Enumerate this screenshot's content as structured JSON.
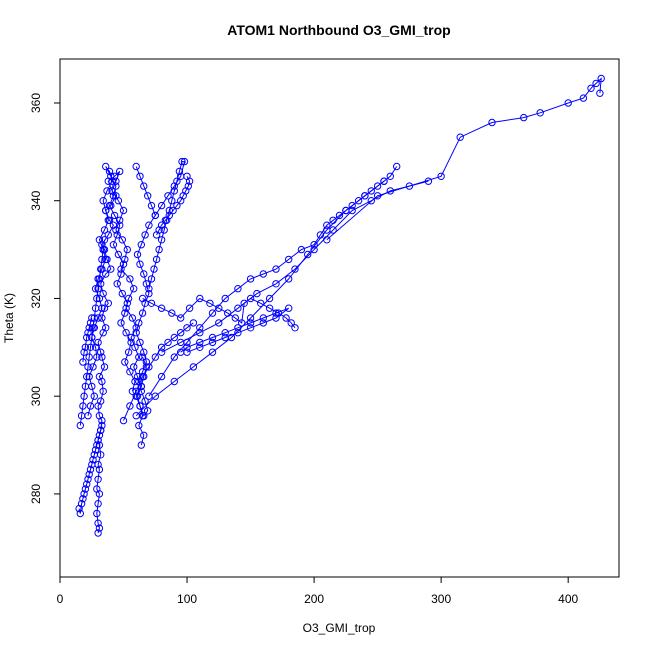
{
  "chart_data": {
    "type": "scatter",
    "title": "ATOM1 Northbound O3_GMI_trop",
    "xlabel": "O3_GMI_trop",
    "ylabel": "Theta (K)",
    "xlim": [
      0,
      440
    ],
    "ylim": [
      263,
      369
    ],
    "xticks": [
      0,
      100,
      200,
      300,
      400
    ],
    "yticks": [
      280,
      300,
      320,
      340,
      360
    ],
    "grid": false,
    "point_style": "open-circle",
    "line_style": "connected",
    "color": "#0000ff",
    "series": [
      {
        "x": [
          30,
          31,
          30,
          29,
          30,
          31,
          29,
          30,
          31,
          30,
          32,
          31,
          30,
          32,
          33,
          31,
          30,
          32,
          34,
          33,
          31,
          35,
          33,
          32,
          30,
          34,
          36,
          33,
          35,
          38,
          34,
          32,
          36,
          40,
          37,
          35,
          33,
          38,
          42,
          39,
          36,
          40,
          44,
          41,
          38,
          43,
          47,
          44,
          41,
          46,
          50,
          47,
          44,
          49,
          53,
          51,
          48,
          55,
          58,
          54,
          52,
          57,
          60,
          56,
          59,
          62,
          58,
          61,
          64,
          60,
          63,
          65,
          62,
          66,
          64
        ],
        "y": [
          272,
          273,
          274,
          276,
          278,
          280,
          281,
          283,
          285,
          286,
          288,
          290,
          291,
          293,
          295,
          296,
          298,
          299,
          301,
          303,
          304,
          306,
          308,
          309,
          311,
          313,
          314,
          316,
          318,
          319,
          321,
          323,
          325,
          326,
          328,
          330,
          331,
          333,
          335,
          336,
          338,
          339,
          341,
          342,
          344,
          345,
          346,
          344,
          342,
          340,
          338,
          336,
          334,
          332,
          330,
          328,
          326,
          324,
          322,
          320,
          318,
          316,
          314,
          312,
          310,
          308,
          306,
          304,
          302,
          300,
          298,
          296,
          294,
          292,
          290
        ]
      },
      {
        "x": [
          22,
          24,
          27,
          25,
          23,
          26,
          29,
          28,
          25,
          27,
          30,
          33,
          31,
          28,
          30,
          33,
          36,
          34,
          31,
          35,
          38,
          36,
          34,
          37,
          41,
          39,
          36,
          40,
          44,
          42,
          39,
          43,
          47,
          45,
          42,
          46,
          50,
          48,
          45,
          49,
          53,
          51,
          48,
          52,
          56,
          54,
          51,
          55,
          59,
          57
        ],
        "y": [
          296,
          298,
          300,
          302,
          304,
          306,
          308,
          310,
          312,
          314,
          316,
          318,
          320,
          322,
          324,
          326,
          328,
          330,
          332,
          334,
          336,
          338,
          340,
          342,
          344,
          346,
          347,
          345,
          343,
          341,
          339,
          337,
          335,
          333,
          331,
          329,
          327,
          325,
          323,
          321,
          319,
          317,
          315,
          313,
          311,
          309,
          307,
          305,
          303,
          301
        ]
      },
      {
        "x": [
          15,
          16,
          17,
          18,
          19,
          20,
          21,
          22,
          23,
          24,
          25,
          26,
          27,
          28,
          29,
          30,
          31,
          32,
          33
        ],
        "y": [
          277,
          276,
          278,
          279,
          280,
          281,
          282,
          283,
          284,
          285,
          286,
          287,
          288,
          289,
          290,
          291,
          292,
          293,
          294
        ]
      },
      {
        "x": [
          16,
          17,
          18,
          19,
          20,
          21,
          22,
          23,
          24,
          25,
          26,
          27,
          28,
          29,
          30,
          31,
          32,
          33,
          34,
          35
        ],
        "y": [
          294,
          296,
          298,
          300,
          302,
          304,
          306,
          308,
          310,
          312,
          314,
          316,
          318,
          320,
          322,
          324,
          326,
          328,
          330,
          332
        ]
      },
      {
        "x": [
          18,
          19,
          20,
          21,
          22,
          23,
          24,
          25
        ],
        "y": [
          307,
          309,
          310,
          312,
          313,
          314,
          315,
          316
        ]
      },
      {
        "x": [
          60,
          63,
          66,
          69,
          72,
          75,
          70,
          67,
          64,
          61,
          63,
          66,
          68,
          70,
          67,
          65,
          62,
          60,
          63,
          66,
          68,
          65,
          62,
          64,
          67,
          69,
          66,
          63,
          61,
          64,
          66,
          68,
          65
        ],
        "y": [
          347,
          345,
          343,
          341,
          339,
          337,
          335,
          333,
          331,
          329,
          327,
          325,
          323,
          321,
          319,
          317,
          315,
          313,
          311,
          309,
          307,
          305,
          303,
          301,
          299,
          297,
          296,
          298,
          300,
          302,
          304,
          306,
          308
        ]
      },
      {
        "x": [
          75,
          80,
          85,
          90,
          95,
          98,
          96,
          94,
          92,
          90,
          88,
          86,
          84,
          82,
          80,
          78,
          76,
          74,
          72,
          70
        ],
        "y": [
          337,
          339,
          341,
          343,
          345,
          348,
          348,
          346,
          344,
          342,
          340,
          338,
          336,
          334,
          332,
          330,
          328,
          326,
          324,
          322
        ]
      },
      {
        "x": [
          100,
          102,
          101,
          99,
          97,
          95,
          92,
          89,
          86,
          83,
          80,
          78,
          76
        ],
        "y": [
          345,
          344,
          343,
          342,
          341,
          340,
          339,
          338,
          337,
          336,
          335,
          334,
          333
        ]
      },
      {
        "x": [
          65,
          72,
          80,
          88,
          95,
          102,
          110,
          118,
          125,
          132,
          138,
          143,
          145,
          150,
          158,
          165,
          172,
          178,
          182,
          185
        ],
        "y": [
          320,
          319,
          318,
          317,
          316,
          318,
          320,
          319,
          318,
          317,
          316,
          315,
          319,
          320,
          319,
          318,
          317,
          316,
          315,
          314
        ]
      },
      {
        "x": [
          70,
          80,
          90,
          100,
          110,
          120,
          130,
          140,
          150,
          160,
          170,
          180,
          190,
          200,
          205,
          210,
          215,
          220,
          225,
          230,
          235,
          240,
          245,
          250,
          255,
          260,
          265
        ],
        "y": [
          300,
          304,
          308,
          311,
          314,
          317,
          320,
          322,
          324,
          325,
          326,
          328,
          330,
          331,
          333,
          335,
          336,
          337,
          338,
          339,
          340,
          341,
          342,
          343,
          344,
          345,
          347
        ]
      },
      {
        "x": [
          80,
          95,
          110,
          125,
          140,
          155,
          170,
          185,
          200,
          215,
          230,
          245,
          260,
          275,
          290
        ],
        "y": [
          309,
          311,
          313,
          315,
          318,
          321,
          323,
          326,
          330,
          334,
          338,
          340,
          342,
          343,
          344
        ]
      },
      {
        "x": [
          60,
          75,
          90,
          105,
          120,
          135,
          150,
          165,
          180,
          195,
          210,
          225,
          240,
          255
        ],
        "y": [
          296,
          300,
          303,
          306,
          309,
          312,
          316,
          320,
          324,
          329,
          334,
          338,
          341,
          344
        ]
      },
      {
        "x": [
          210,
          250,
          300,
          315,
          340,
          365,
          378,
          400,
          412,
          418,
          422,
          426,
          425
        ],
        "y": [
          332,
          341,
          345,
          353,
          356,
          357,
          358,
          360,
          361,
          363,
          364,
          365,
          362
        ]
      },
      {
        "x": [
          95,
          100,
          110,
          120,
          130,
          140,
          150,
          160,
          170,
          180,
          170,
          160,
          150,
          140,
          130,
          120,
          110,
          100
        ],
        "y": [
          309,
          310,
          311,
          312,
          313,
          314,
          315,
          316,
          317,
          318,
          316,
          315,
          314,
          313,
          312,
          311,
          310,
          309
        ]
      },
      {
        "x": [
          50,
          55,
          60,
          65,
          70,
          75,
          80,
          85,
          90,
          95,
          100,
          105
        ],
        "y": [
          295,
          298,
          301,
          304,
          306,
          308,
          310,
          311,
          312,
          313,
          314,
          315
        ]
      }
    ]
  }
}
